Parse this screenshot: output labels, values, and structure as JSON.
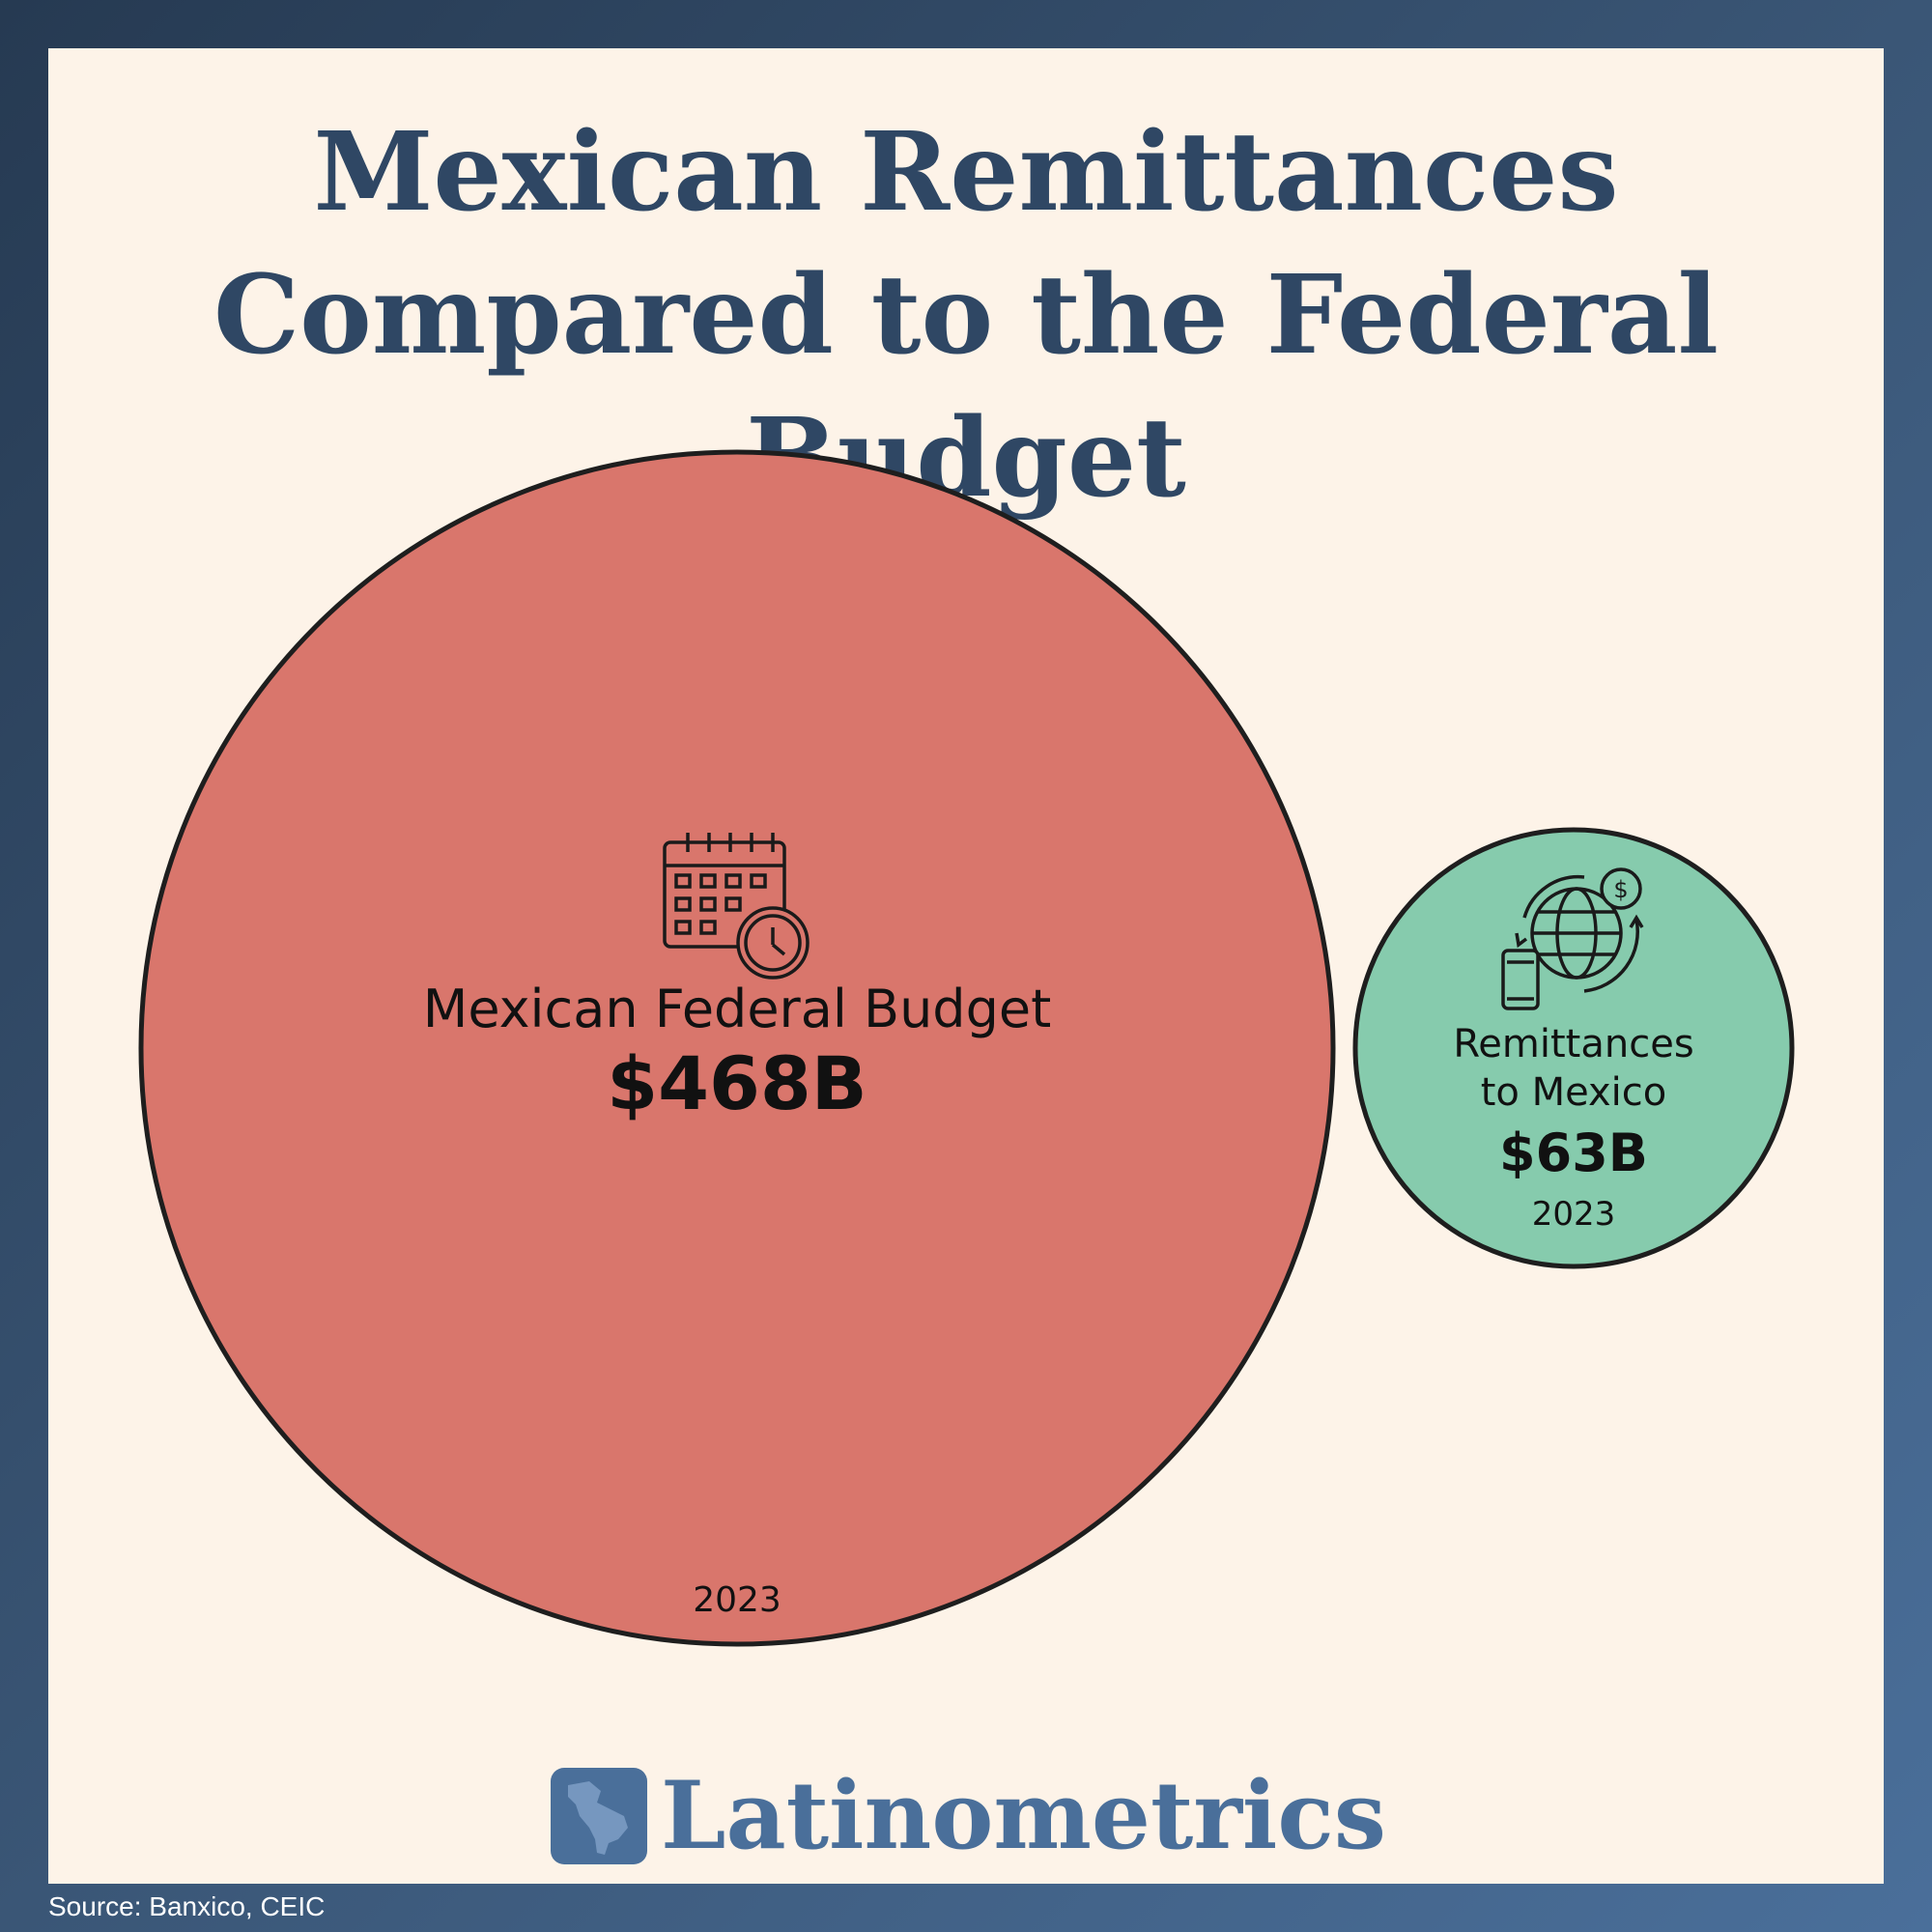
{
  "title": "Mexican Remittances Compared to the Federal Budget",
  "chart_data": {
    "type": "bubble",
    "title": "Mexican Remittances Compared to the Federal Budget",
    "unit": "B",
    "series": [
      {
        "name": "Mexican Federal Budget",
        "value": 468,
        "value_label": "$468B",
        "year": "2023",
        "color": "#d9766c",
        "icon": "calendar-clock-icon"
      },
      {
        "name": "Remittances to Mexico",
        "value": 63,
        "value_label": "$63B",
        "year": "2023",
        "color": "#86cbad",
        "icon": "globe-money-transfer-icon"
      }
    ],
    "labels": {
      "budget_name": "Mexican Federal Budget",
      "budget_value": "$468B",
      "budget_year": "2023",
      "remit_name_line1": "Remittances",
      "remit_name_line2": "to Mexico",
      "remit_value": "$63B",
      "remit_year": "2023"
    }
  },
  "brand": {
    "name": "Latinometrics",
    "logo_icon": "latin-america-map-icon"
  },
  "source": "Source: Banxico, CEIC"
}
